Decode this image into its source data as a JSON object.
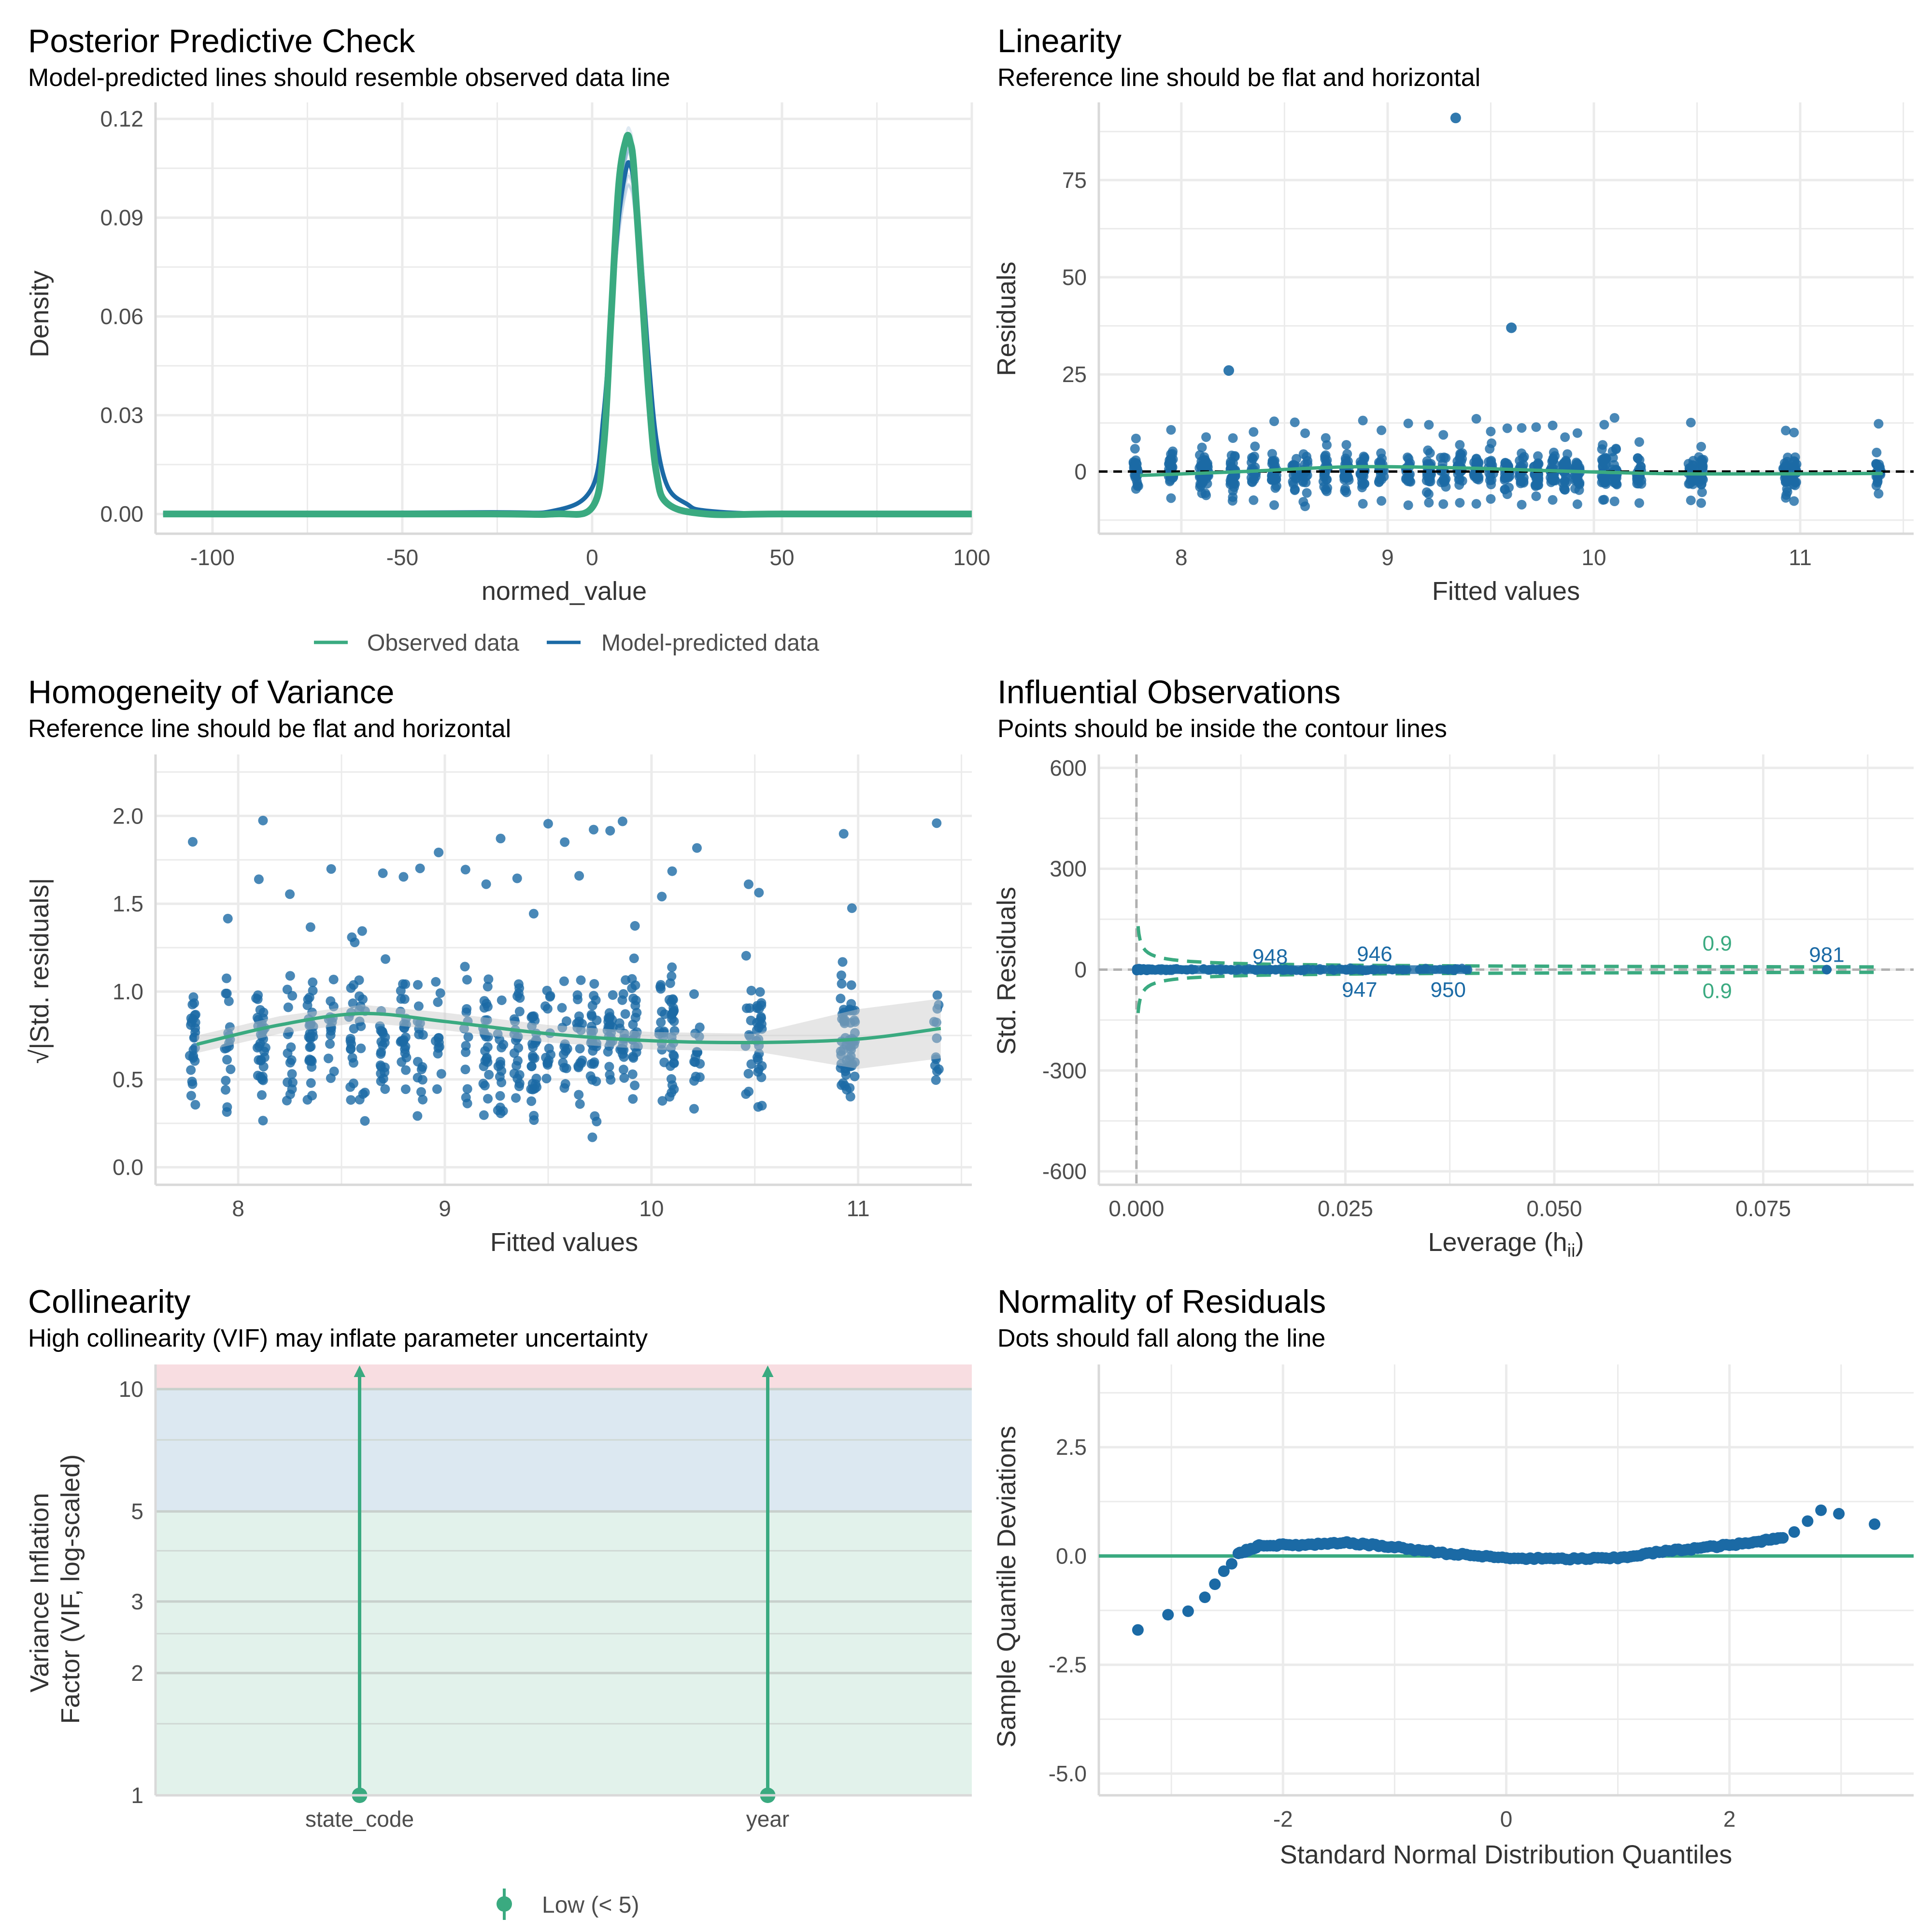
{
  "colors": {
    "green": "#3aaa80",
    "blue": "#1b6aa5",
    "grid": "#ebebeb",
    "ref": "#000000",
    "band_red": "#f8dde1",
    "band_blue": "#dce8f1",
    "band_green": "#e2f2eb"
  },
  "chart_data": [
    {
      "id": "ppc",
      "type": "line",
      "title": "Posterior Predictive Check",
      "subtitle": "Model-predicted lines should resemble observed data line",
      "xlabel": "normed_value",
      "ylabel": "Density",
      "xlim": [
        -115,
        100
      ],
      "ylim": [
        -0.006,
        0.125
      ],
      "xticks": [
        -100,
        -50,
        0,
        50,
        100
      ],
      "xtick_labels": [
        "-100",
        "-50",
        "0",
        "50",
        "100"
      ],
      "yticks": [
        0,
        0.03,
        0.06,
        0.09,
        0.12
      ],
      "ytick_labels": [
        "0.00",
        "0.03",
        "0.06",
        "0.09",
        "0.12"
      ],
      "legend": [
        "Observed data",
        "Model-predicted data"
      ],
      "series": [
        {
          "name": "Observed data",
          "x": [
            -113,
            -30,
            -10,
            0,
            3,
            5,
            7,
            9,
            10,
            11,
            13,
            15,
            17,
            20,
            30,
            50,
            100
          ],
          "y": [
            0,
            0,
            0,
            0.002,
            0.02,
            0.06,
            0.1,
            0.114,
            0.113,
            0.105,
            0.07,
            0.035,
            0.012,
            0.003,
            0,
            0,
            0
          ]
        },
        {
          "name": "Model-predicted data",
          "x": [
            -113,
            -30,
            -10,
            0,
            3,
            5,
            7,
            9,
            10,
            11,
            13,
            15,
            17,
            20,
            25,
            30,
            50,
            100
          ],
          "y": [
            0,
            0.0005,
            0.001,
            0.008,
            0.03,
            0.06,
            0.09,
            0.105,
            0.106,
            0.1,
            0.075,
            0.045,
            0.022,
            0.008,
            0.003,
            0.001,
            0,
            0
          ]
        }
      ]
    },
    {
      "id": "linearity",
      "type": "scatter",
      "title": "Linearity",
      "subtitle": "Reference line should be flat and horizontal",
      "xlabel": "Fitted values",
      "ylabel": "Residuals",
      "xlim": [
        7.6,
        11.55
      ],
      "ylim": [
        -16,
        95
      ],
      "xticks": [
        8,
        9,
        10,
        11
      ],
      "xtick_labels": [
        "8",
        "9",
        "10",
        "11"
      ],
      "yticks": [
        0,
        25,
        50,
        75
      ],
      "ytick_labels": [
        "0",
        "25",
        "50",
        "75"
      ],
      "outliers": [
        [
          9.33,
          91
        ],
        [
          9.6,
          37
        ],
        [
          8.23,
          26
        ]
      ],
      "reference_y": 0
    },
    {
      "id": "homogeneity",
      "type": "scatter",
      "title": "Homogeneity of Variance",
      "subtitle": "Reference line should be flat and horizontal",
      "xlabel": "Fitted values",
      "ylabel": "√|Std. residuals|",
      "xlim": [
        7.6,
        11.55
      ],
      "ylim": [
        -0.1,
        2.35
      ],
      "xticks": [
        8,
        9,
        10,
        11
      ],
      "xtick_labels": [
        "8",
        "9",
        "10",
        "11"
      ],
      "yticks": [
        0,
        0.5,
        1,
        1.5,
        2
      ],
      "ytick_labels": [
        "0.0",
        "0.5",
        "1.0",
        "1.5",
        "2.0"
      ],
      "smooth": [
        [
          7.8,
          0.7
        ],
        [
          8.2,
          0.81
        ],
        [
          8.6,
          0.875
        ],
        [
          9.0,
          0.83
        ],
        [
          9.5,
          0.76
        ],
        [
          10.0,
          0.72
        ],
        [
          10.5,
          0.71
        ],
        [
          11.0,
          0.73
        ],
        [
          11.4,
          0.79
        ]
      ]
    },
    {
      "id": "influence",
      "type": "scatter",
      "title": "Influential Observations",
      "subtitle": "Points should be inside the contour lines",
      "xlabel": "Leverage (h",
      "xlabel_sub": "ii",
      "xlabel_end": ")",
      "ylabel": "Std. Residuals",
      "xlim": [
        -0.0045,
        0.093
      ],
      "ylim": [
        -640,
        640
      ],
      "xticks": [
        0,
        0.025,
        0.05,
        0.075
      ],
      "xtick_labels": [
        "0.000",
        "0.025",
        "0.050",
        "0.075"
      ],
      "yticks": [
        -600,
        -300,
        0,
        300,
        600
      ],
      "ytick_labels": [
        "-600",
        "-300",
        "0",
        "300",
        "600"
      ],
      "point_labels": [
        {
          "text": "948",
          "x": 0.016,
          "y": 40,
          "color": "blue"
        },
        {
          "text": "946",
          "x": 0.0285,
          "y": 48,
          "color": "blue"
        },
        {
          "text": "947",
          "x": 0.0267,
          "y": -58,
          "color": "blue"
        },
        {
          "text": "950",
          "x": 0.0373,
          "y": -58,
          "color": "blue"
        },
        {
          "text": "981",
          "x": 0.0826,
          "y": 46,
          "color": "blue"
        },
        {
          "text": "0.9",
          "x": 0.0695,
          "y": 80,
          "color": "green"
        },
        {
          "text": "0.9",
          "x": 0.0695,
          "y": -62,
          "color": "green"
        }
      ]
    },
    {
      "id": "collinearity",
      "type": "bar",
      "title": "Collinearity",
      "subtitle": "High collinearity (VIF) may inflate parameter uncertainty",
      "xlabel": "",
      "ylabel": "Variance Inflation Factor (VIF, log-scaled)",
      "ylabel_lines": [
        "Variance Inflation",
        "Factor (VIF, log-scaled)"
      ],
      "y_scale": "log",
      "ylim": [
        1,
        11.5
      ],
      "yticks": [
        1,
        2,
        3,
        5,
        10
      ],
      "ytick_labels": [
        "1",
        "2",
        "3",
        "5",
        "10"
      ],
      "categories": [
        "state_code",
        "year"
      ],
      "values": [
        1,
        1
      ],
      "legend": [
        "Low (< 5)"
      ]
    },
    {
      "id": "normality",
      "type": "scatter",
      "title": "Normality of Residuals",
      "subtitle": "Dots should fall along the line",
      "xlabel": "Standard Normal Distribution Quantiles",
      "ylabel": "Sample Quantile Deviations",
      "xlim": [
        -3.65,
        3.65
      ],
      "ylim": [
        -5.5,
        4.4
      ],
      "xticks": [
        -2,
        0,
        2
      ],
      "xtick_labels": [
        "-2",
        "0",
        "2"
      ],
      "yticks": [
        -5,
        -2.5,
        0,
        2.5
      ],
      "ytick_labels": [
        "-5.0",
        "-2.5",
        "0.0",
        "2.5"
      ],
      "reference_y": 0,
      "tail_points": [
        [
          -3.3,
          -1.7
        ],
        [
          -3.03,
          -1.35
        ],
        [
          -2.85,
          -1.27
        ],
        [
          -2.7,
          -0.95
        ],
        [
          -2.61,
          -0.65
        ],
        [
          -2.53,
          -0.35
        ],
        [
          -2.46,
          -0.18
        ],
        [
          2.58,
          0.55
        ],
        [
          2.7,
          0.8
        ],
        [
          2.82,
          1.05
        ],
        [
          2.98,
          0.97
        ],
        [
          3.3,
          0.73
        ]
      ],
      "curve": [
        [
          -2.4,
          0.05
        ],
        [
          -2.2,
          0.25
        ],
        [
          -1.8,
          0.25
        ],
        [
          -1.4,
          0.3
        ],
        [
          -1.0,
          0.2
        ],
        [
          -0.5,
          0.05
        ],
        [
          0,
          -0.05
        ],
        [
          0.5,
          -0.07
        ],
        [
          1.0,
          -0.05
        ],
        [
          1.4,
          0.1
        ],
        [
          1.8,
          0.2
        ],
        [
          2.2,
          0.3
        ],
        [
          2.5,
          0.45
        ]
      ]
    }
  ]
}
